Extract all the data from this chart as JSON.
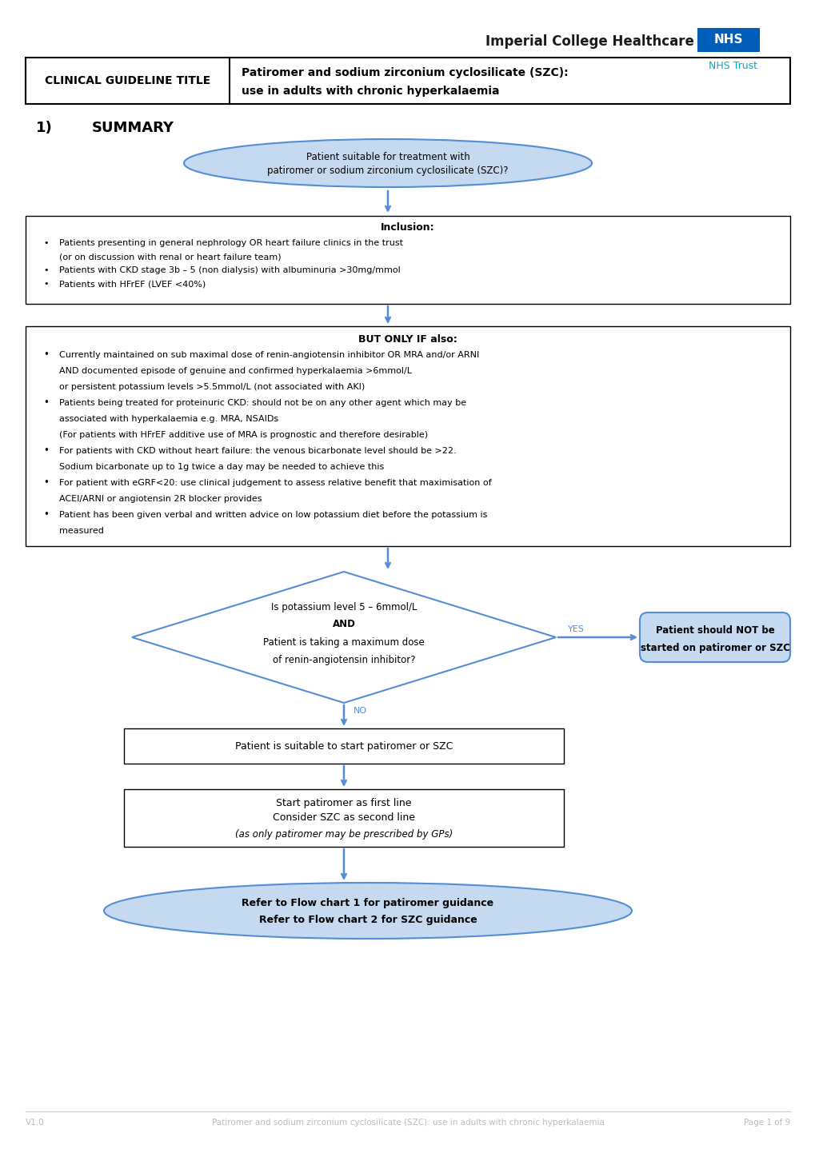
{
  "bg_color": "#ffffff",
  "header_logo_text": "Imperial College Healthcare",
  "header_nhs_text": "NHS",
  "header_nhs_bg": "#005EB8",
  "header_trust_text": "NHS Trust",
  "header_trust_color": "#00A9CE",
  "guideline_label": "CLINICAL GUIDELINE TITLE",
  "guideline_title_line1": "Patiromer and sodium zirconium cyclosilicate (SZC):",
  "guideline_title_line2": "use in adults with chronic hyperkalaemia",
  "section_title": "1)",
  "section_title2": "SUMMARY",
  "oval_fill": "#C5D9F1",
  "oval_border": "#538DD5",
  "flow_color": "#538DD5",
  "box_border_color": "#538DD5",
  "rect_border_color": "#000000",
  "arrow_color": "#538DD5",
  "side_box_fill": "#C5D9F1",
  "side_box_border": "#538DD5",
  "footer_version": "V1.0",
  "footer_text": "Patiromer and sodium zirconium cyclosilicate (SZC): use in adults with chronic hyperkalaemia",
  "footer_page": "Page 1 of 9"
}
